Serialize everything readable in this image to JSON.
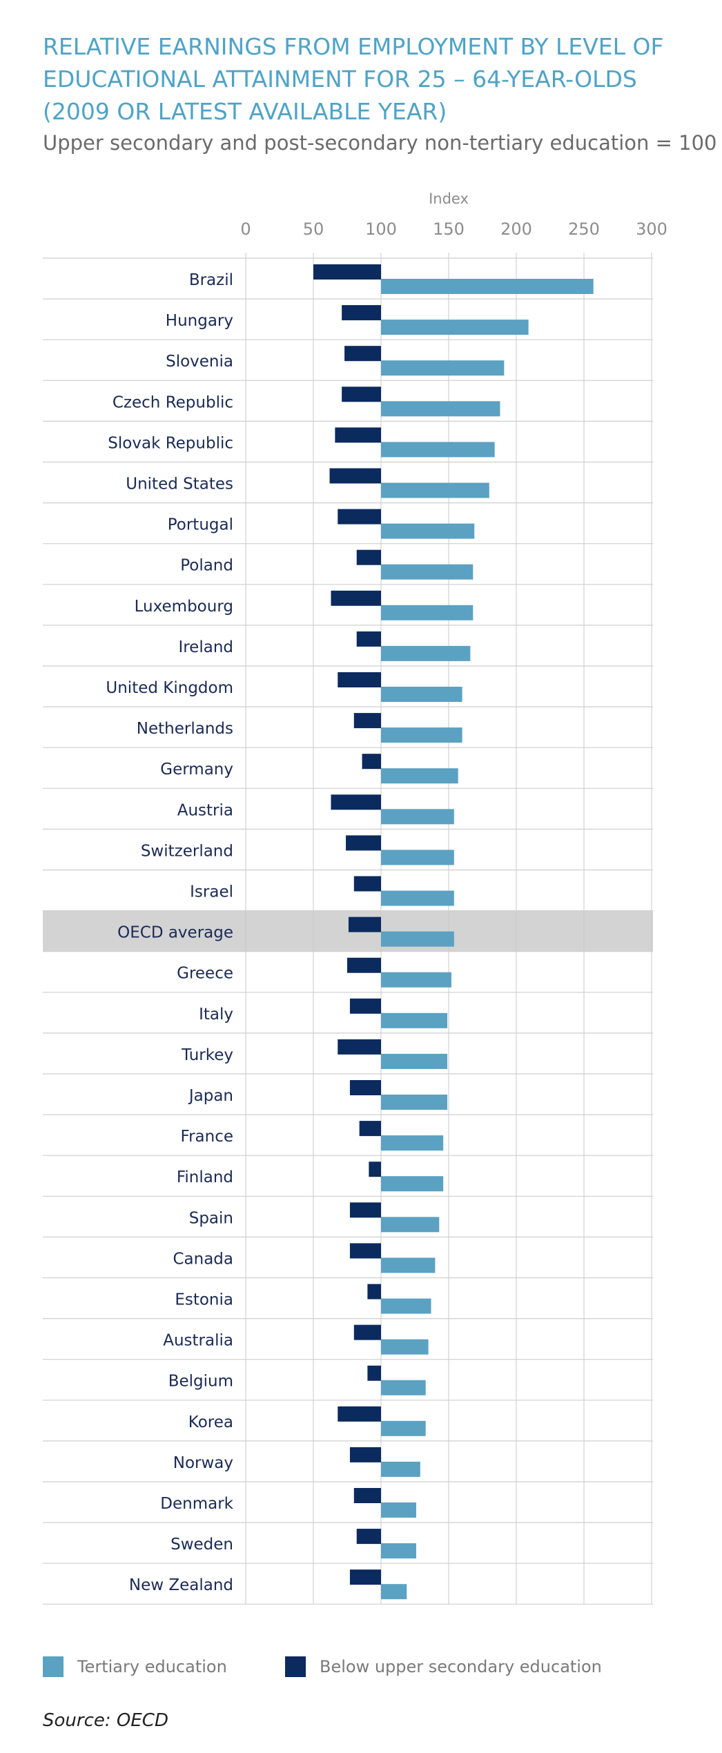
{
  "title": "RELATIVE EARNINGS FROM EMPLOYMENT BY LEVEL OF EDUCATIONAL ATTAINMENT FOR 25 – 64-YEAR-OLDS (2009 OR LATEST AVAILABLE YEAR)",
  "subtitle": "Upper secondary and post-secondary non-tertiary education = 100",
  "source": "Source: OECD",
  "colors": {
    "tertiary": "#5ba1c2",
    "below_upper_secondary": "#0b2a5e",
    "highlight_row": "#d3d3d3",
    "title": "#4ea3c7"
  },
  "legend": {
    "tertiary": "Tertiary education",
    "below": "Below upper secondary education"
  },
  "chart_data": {
    "type": "bar",
    "orientation": "horizontal",
    "title": "RELATIVE EARNINGS FROM EMPLOYMENT BY LEVEL OF EDUCATIONAL ATTAINMENT FOR 25 – 64-YEAR-OLDS (2009 OR LATEST AVAILABLE YEAR)",
    "subtitle": "Upper secondary and post-secondary non-tertiary education = 100",
    "xlabel": "Index",
    "ylabel": "",
    "xlim": [
      0,
      300
    ],
    "xticks": [
      0,
      50,
      100,
      150,
      200,
      250,
      300
    ],
    "baseline": 100,
    "legend_position": "bottom",
    "highlight": "OECD average",
    "categories": [
      "Brazil",
      "Hungary",
      "Slovenia",
      "Czech Republic",
      "Slovak Republic",
      "United States",
      "Portugal",
      "Poland",
      "Luxembourg",
      "Ireland",
      "United Kingdom",
      "Netherlands",
      "Germany",
      "Austria",
      "Switzerland",
      "Israel",
      "OECD average",
      "Greece",
      "Italy",
      "Turkey",
      "Japan",
      "France",
      "Finland",
      "Spain",
      "Canada",
      "Estonia",
      "Australia",
      "Belgium",
      "Korea",
      "Norway",
      "Denmark",
      "Sweden",
      "New Zealand"
    ],
    "series": [
      {
        "name": "Below upper secondary education",
        "values": [
          50,
          71,
          73,
          71,
          66,
          62,
          68,
          82,
          63,
          82,
          68,
          80,
          86,
          63,
          74,
          80,
          76,
          75,
          77,
          68,
          77,
          84,
          91,
          77,
          77,
          90,
          80,
          90,
          68,
          77,
          80,
          82,
          77
        ]
      },
      {
        "name": "Tertiary education",
        "values": [
          257,
          209,
          191,
          188,
          184,
          180,
          169,
          168,
          168,
          166,
          160,
          160,
          157,
          154,
          154,
          154,
          154,
          152,
          149,
          149,
          149,
          146,
          146,
          143,
          140,
          137,
          135,
          133,
          133,
          129,
          126,
          126,
          119
        ]
      }
    ]
  }
}
